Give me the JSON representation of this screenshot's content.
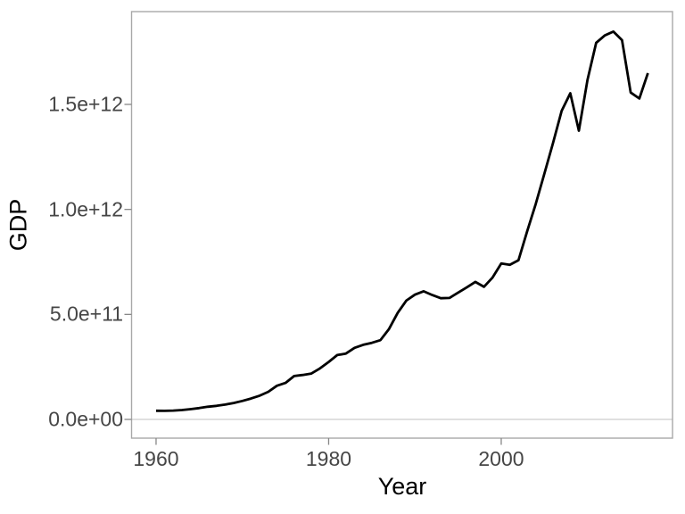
{
  "chart_data": {
    "type": "line",
    "title": "",
    "xlabel": "Year",
    "ylabel": "GDP",
    "legend": "none",
    "grid": "single light horizontal gridline at y=0 only",
    "x_range": [
      1957.16,
      2019.85
    ],
    "y_range": [
      -89200000000,
      1941900000000
    ],
    "x_ticks": [
      1960,
      1980,
      2000
    ],
    "x_tick_labels": [
      "1960",
      "1980",
      "2000"
    ],
    "y_ticks": [
      0,
      500000000000,
      1000000000000,
      1500000000000
    ],
    "y_tick_labels": [
      "0.0e+00",
      "5.0e+11",
      "1.0e+12",
      "1.5e+12"
    ],
    "series": [
      {
        "name": "GDP",
        "color": "#000000",
        "stroke_width": 2.8,
        "x": [
          1960,
          1961,
          1962,
          1963,
          1964,
          1965,
          1966,
          1967,
          1968,
          1969,
          1970,
          1971,
          1972,
          1973,
          1974,
          1975,
          1976,
          1977,
          1978,
          1979,
          1980,
          1981,
          1982,
          1983,
          1984,
          1985,
          1986,
          1987,
          1988,
          1989,
          1990,
          1991,
          1992,
          1993,
          1994,
          1995,
          1996,
          1997,
          1998,
          1999,
          2000,
          2001,
          2002,
          2003,
          2004,
          2005,
          2006,
          2007,
          2008,
          2009,
          2010,
          2011,
          2012,
          2013,
          2014,
          2015,
          2016,
          2017
        ],
        "y": [
          41090000000.0,
          40770000000.0,
          42230000000.0,
          44680000000.0,
          48860000000.0,
          53910000000.0,
          60360000000.0,
          64470000000.0,
          70760000000.0,
          78230000000.0,
          87900000000.0,
          99270000000.0,
          113080000000.0,
          131320000000.0,
          160410000000.0,
          173830000000.0,
          206580000000.0,
          211600000000.0,
          218510000000.0,
          243070000000.0,
          273850000000.0,
          306210000000.0,
          313510000000.0,
          340620000000.0,
          355370000000.0,
          364760000000.0,
          377320000000.0,
          431080000000.0,
          507350000000.0,
          565780000000.0,
          593930000000.0,
          610330000000.0,
          592390000000.0,
          577170000000.0,
          578140000000.0,
          604030000000.0,
          628550000000.0,
          654910000000.0,
          631450000000.0,
          676080000000.0,
          742290000000.0,
          736380000000.0,
          757950000000.0,
          895540000000.0,
          1026690000000.0,
          1169360000000.0,
          1315420000000.0,
          1468820000000.0,
          1552990000000.0,
          1374630000000.0,
          1617340000000.0,
          1793330000000.0,
          1828370000000.0,
          1846600000000.0,
          1805750000000.0,
          1556510000000.0,
          1527990000000.0,
          1649270000000.0
        ]
      }
    ]
  },
  "style": {
    "background": "#ffffff",
    "panel_border_color": "#a8a8a8",
    "zero_gridline_color": "#e0e0e0",
    "tick_mark_color": "#878787",
    "tick_label_color": "#464646",
    "axis_title_color": "#000000"
  }
}
